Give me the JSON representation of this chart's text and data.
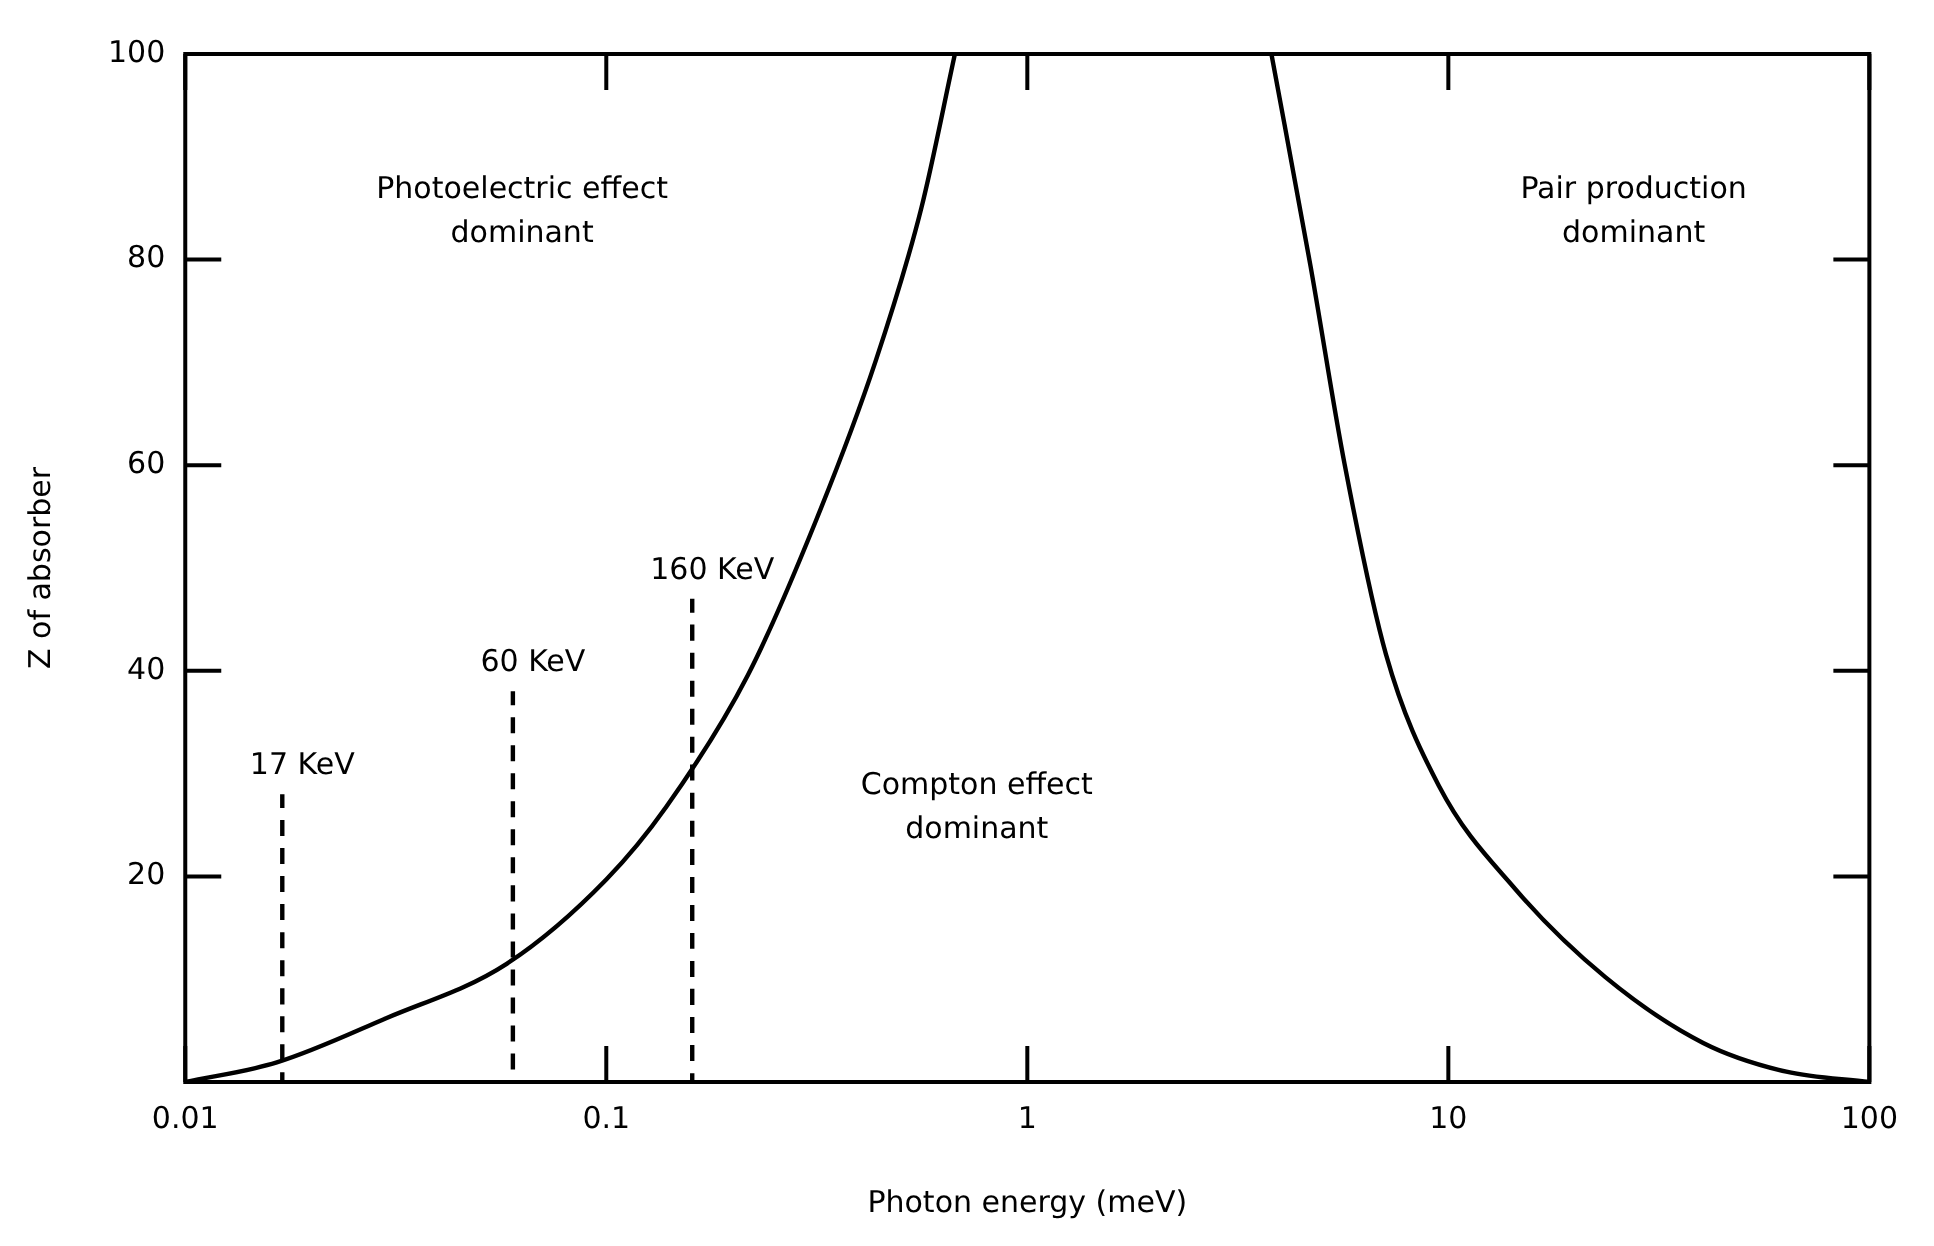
{
  "chart_data": {
    "type": "line",
    "xlabel": "Photon energy (meV)",
    "ylabel": "Z of absorber",
    "log": "x",
    "xlim": [
      0.01,
      100
    ],
    "xticks": [
      0.01,
      0.1,
      1,
      10,
      100
    ],
    "ylim": [
      0,
      100
    ],
    "yticks": [
      20,
      40,
      60,
      80,
      100
    ],
    "grid": false,
    "legend": false,
    "series": [
      {
        "color": "#000000",
        "line_style": "solid",
        "x": [
          0.01,
          0.0165,
          0.03,
          0.058,
          0.1,
          0.139,
          0.217,
          0.314,
          0.436,
          0.56,
          0.673
        ],
        "values": [
          0,
          1.9,
          6.2,
          11.5,
          19.7,
          26.8,
          39.6,
          54.5,
          70.1,
          85,
          100
        ]
      },
      {
        "color": "#000000",
        "line_style": "solid",
        "x": [
          3.8,
          4.71,
          5.67,
          7.11,
          9.5,
          14.4,
          23.6,
          40.3,
          63.5,
          100
        ],
        "values": [
          100,
          79.3,
          60.1,
          41.6,
          28.8,
          18.8,
          10.2,
          3.8,
          1,
          0
        ]
      },
      {
        "color": "#000000",
        "line_style": "dashed",
        "x": [
          0.017,
          0.017
        ],
        "values": [
          0,
          28
        ]
      },
      {
        "color": "#000000",
        "line_style": "dashed",
        "x": [
          0.06,
          0.06
        ],
        "values": [
          0,
          38
        ]
      },
      {
        "color": "#000000",
        "line_style": "dashed",
        "x": [
          0.16,
          0.16
        ],
        "values": [
          0,
          47
        ]
      }
    ],
    "annotations": [
      {
        "text": "17 KeV",
        "x": 0.017,
        "y": 28
      },
      {
        "text": "60 KeV",
        "x": 0.06,
        "y": 38
      },
      {
        "text": "160 KeV",
        "x": 0.16,
        "y": 47
      },
      "Photoelectric effect\ndominant",
      "Compton effect\ndominant",
      "Pair production\ndominant"
    ]
  }
}
